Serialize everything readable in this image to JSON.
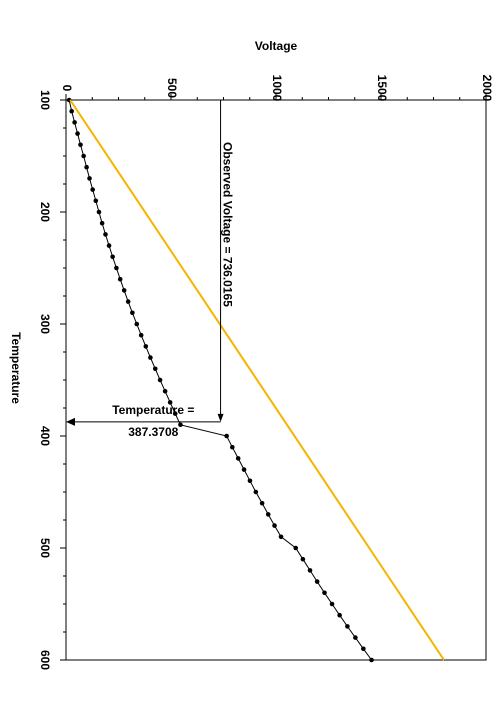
{
  "chart_data": {
    "type": "line",
    "orientation": "rotated-90",
    "xlabel": "Temperature",
    "ylabel": "Voltage",
    "xlim": [
      100,
      600
    ],
    "ylim": [
      0,
      2000
    ],
    "x_ticks": [
      100,
      200,
      300,
      400,
      500,
      600
    ],
    "y_ticks": [
      0,
      500,
      1000,
      1500,
      2000
    ],
    "x_tick_labels": [
      "100",
      "200",
      "300",
      "400",
      "500",
      "600"
    ],
    "y_tick_labels": [
      "0",
      "500",
      "1000",
      "1500",
      "2000"
    ],
    "grid": false,
    "series": [
      {
        "style": "line-with-dots",
        "color": "#000000",
        "x": [
          100,
          110,
          120,
          130,
          140,
          150,
          160,
          170,
          180,
          190,
          200,
          210,
          220,
          230,
          240,
          250,
          260,
          270,
          280,
          290,
          300,
          310,
          320,
          330,
          340,
          350,
          360,
          370,
          380,
          390,
          400,
          410,
          420,
          430,
          440,
          450,
          460,
          470,
          480,
          490,
          500,
          510,
          520,
          530,
          540,
          550,
          560,
          570,
          580,
          590,
          600
        ],
        "y": [
          15,
          27,
          41,
          55,
          69,
          84,
          98,
          112,
          127,
          142,
          157,
          172,
          188,
          205,
          222,
          240,
          258,
          277,
          296,
          316,
          337,
          358,
          380,
          402,
          425,
          448,
          472,
          496,
          520,
          545,
          765,
          792,
          820,
          848,
          876,
          904,
          934,
          963,
          993,
          1024,
          1094,
          1128,
          1162,
          1196,
          1231,
          1267,
          1303,
          1340,
          1378,
          1416,
          1455
        ]
      },
      {
        "style": "line",
        "color": "#f5b400",
        "x": [
          100,
          600
        ],
        "y": [
          20,
          1800
        ]
      }
    ],
    "annotations": {
      "voltage_label": "Observed Voltage = 736.0165",
      "voltage_value": 736.0165,
      "temperature_label_line1": "Temperature =",
      "temperature_label_line2": "387.3708",
      "temperature_value": 387.3708
    }
  }
}
